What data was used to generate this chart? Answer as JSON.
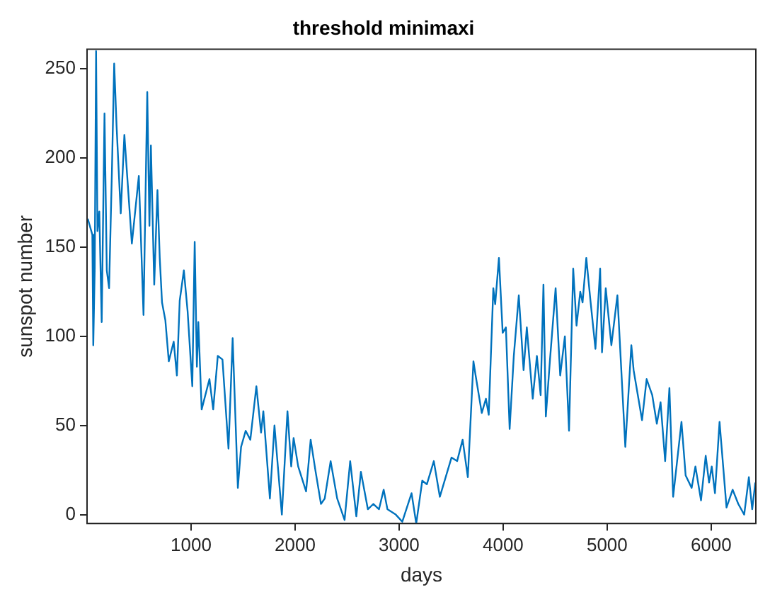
{
  "chart_data": {
    "type": "line",
    "title": "threshold minimaxi",
    "xlabel": "days",
    "ylabel": "sunspot number",
    "xlim": [
      0,
      6430
    ],
    "ylim": [
      -5,
      261
    ],
    "xticks": [
      1000,
      2000,
      3000,
      4000,
      5000,
      6000
    ],
    "yticks": [
      0,
      50,
      100,
      150,
      200,
      250
    ],
    "grid": false,
    "legend": false,
    "marker": "none",
    "line_style": "solid",
    "series": [
      {
        "color": "#0072bd",
        "x": [
          7,
          51,
          60,
          74,
          87,
          100,
          118,
          141,
          168,
          190,
          212,
          239,
          261,
          284,
          324,
          359,
          431,
          498,
          543,
          579,
          600,
          614,
          646,
          677,
          699,
          721,
          753,
          786,
          833,
          864,
          891,
          931,
          967,
          1012,
          1035,
          1056,
          1070,
          1102,
          1177,
          1213,
          1257,
          1302,
          1347,
          1360,
          1400,
          1450,
          1481,
          1525,
          1570,
          1628,
          1673,
          1695,
          1758,
          1802,
          1873,
          1927,
          1963,
          1986,
          2030,
          2106,
          2150,
          2195,
          2249,
          2285,
          2342,
          2405,
          2476,
          2530,
          2589,
          2633,
          2700,
          2753,
          2807,
          2852,
          2888,
          2968,
          3031,
          3120,
          3165,
          3223,
          3267,
          3334,
          3392,
          3504,
          3558,
          3611,
          3661,
          3715,
          3736,
          3795,
          3835,
          3862,
          3906,
          3924,
          3960,
          3996,
          4027,
          4063,
          4103,
          4151,
          4197,
          4228,
          4285,
          4325,
          4361,
          4388,
          4411,
          4451,
          4505,
          4549,
          4594,
          4634,
          4674,
          4706,
          4742,
          4764,
          4800,
          4840,
          4888,
          4933,
          4951,
          4987,
          5041,
          5099,
          5175,
          5233,
          5255,
          5336,
          5380,
          5434,
          5478,
          5514,
          5558,
          5599,
          5635,
          5715,
          5755,
          5813,
          5849,
          5903,
          5948,
          5980,
          6006,
          6037,
          6081,
          6148,
          6207,
          6261,
          6318,
          6363,
          6395,
          6425
        ],
        "values": [
          166,
          157,
          95,
          138,
          260,
          159,
          170,
          108,
          225,
          137,
          127,
          192,
          253,
          218,
          169,
          213,
          152,
          190,
          112,
          237,
          162,
          207,
          129,
          182,
          144,
          119,
          109,
          86,
          97,
          78,
          120,
          137,
          114,
          72,
          153,
          83,
          108,
          59,
          76,
          59,
          89,
          87,
          48,
          37,
          99,
          15,
          38,
          47,
          42,
          72,
          46,
          58,
          9,
          50,
          0,
          58,
          27,
          43,
          27,
          13,
          42,
          25,
          6,
          9,
          30,
          9,
          -3,
          30,
          -1,
          24,
          3,
          6,
          3,
          14,
          3,
          0,
          -4,
          12,
          -5,
          19,
          17,
          30,
          10,
          32,
          30,
          42,
          21,
          86,
          78,
          57,
          65,
          56,
          127,
          118,
          144,
          102,
          105,
          48,
          89,
          123,
          81,
          105,
          65,
          89,
          67,
          129,
          55,
          87,
          127,
          78,
          100,
          47,
          138,
          106,
          125,
          119,
          144,
          120,
          93,
          138,
          91,
          127,
          95,
          123,
          38,
          95,
          81,
          53,
          76,
          67,
          51,
          63,
          30,
          71,
          10,
          52,
          22,
          15,
          27,
          8,
          33,
          18,
          27,
          12,
          52,
          4,
          14,
          6,
          0,
          21,
          3,
          18
        ]
      }
    ]
  }
}
